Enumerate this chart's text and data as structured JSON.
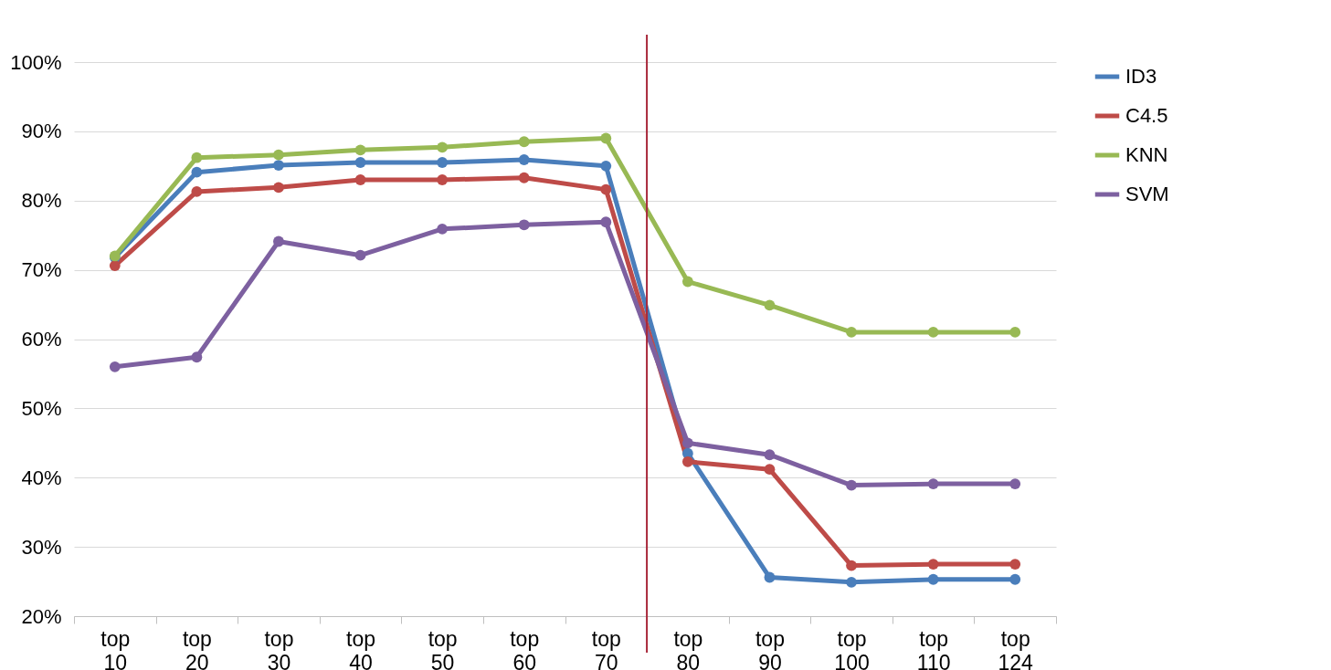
{
  "chart_data": {
    "type": "line",
    "categories": [
      "top 10",
      "top 20",
      "top 30",
      "top 40",
      "top 50",
      "top 60",
      "top 70",
      "top 80",
      "top 90",
      "top 100",
      "top 110",
      "top 124"
    ],
    "series": [
      {
        "name": "ID3",
        "color": "#4a7ebb",
        "values": [
          71.8,
          84.1,
          85.1,
          85.5,
          85.5,
          85.9,
          85.0,
          43.5,
          25.6,
          24.9,
          25.3,
          25.3
        ]
      },
      {
        "name": "C4.5",
        "color": "#be4b48",
        "values": [
          70.6,
          81.3,
          81.9,
          83.0,
          83.0,
          83.3,
          81.6,
          42.3,
          41.2,
          27.3,
          27.5,
          27.5
        ]
      },
      {
        "name": "KNN",
        "color": "#98b954",
        "values": [
          72.0,
          86.2,
          86.6,
          87.3,
          87.7,
          88.5,
          89.0,
          68.3,
          64.9,
          61.0,
          61.0,
          61.0
        ]
      },
      {
        "name": "SVM",
        "color": "#7d60a0",
        "values": [
          56.0,
          57.4,
          74.1,
          72.1,
          75.9,
          76.5,
          76.9,
          45.0,
          43.3,
          38.9,
          39.1,
          39.1
        ]
      }
    ],
    "ylim": [
      20,
      100
    ],
    "yticks": [
      {
        "value": 20,
        "label": "20%"
      },
      {
        "value": 30,
        "label": "30%"
      },
      {
        "value": 40,
        "label": "40%"
      },
      {
        "value": 50,
        "label": "50%"
      },
      {
        "value": 60,
        "label": "60%"
      },
      {
        "value": 70,
        "label": "70%"
      },
      {
        "value": 80,
        "label": "80%"
      },
      {
        "value": 90,
        "label": "90%"
      },
      {
        "value": 100,
        "label": "100%"
      }
    ],
    "ref_lines": [
      {
        "axis": "x",
        "value": "top 70",
        "color": "#a8283a"
      }
    ],
    "grid": "y",
    "legend": "right",
    "marker": "circle",
    "line_style": "solid"
  }
}
